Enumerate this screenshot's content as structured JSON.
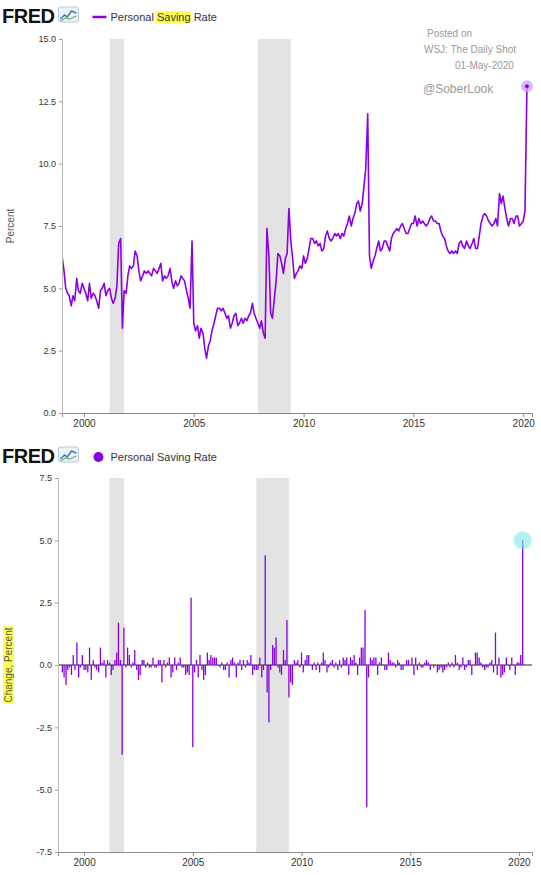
{
  "chart_data": [
    {
      "type": "line",
      "source_logo": "FRED",
      "y_label": "Percent",
      "annotations": [
        "Posted on",
        "WSJ: The Daily Shot",
        "01-May-2020",
        "@SoberLook"
      ],
      "legend": "top-left",
      "grid": false,
      "xlim": [
        1999,
        2020.4
      ],
      "xticks": [
        2000,
        2005,
        2010,
        2015,
        2020
      ],
      "ylim": [
        0,
        15
      ],
      "yticks": [
        {
          "value": 0,
          "label": "0.0"
        },
        2.5,
        {
          "value": 5,
          "label": "5.0"
        },
        7.5,
        {
          "value": 10,
          "label": "10.0"
        },
        12.5,
        {
          "value": 15,
          "label": "15.0"
        }
      ],
      "shaded_periods": [
        [
          2001.17,
          2001.83
        ],
        [
          2007.92,
          2009.42
        ]
      ],
      "x": [
        1999,
        1999.08,
        1999.17,
        1999.25,
        1999.33,
        1999.42,
        1999.5,
        1999.58,
        1999.67,
        1999.75,
        1999.83,
        1999.92,
        2000,
        2000.08,
        2000.17,
        2000.25,
        2000.33,
        2000.42,
        2000.5,
        2000.58,
        2000.67,
        2000.75,
        2000.83,
        2000.92,
        2001,
        2001.08,
        2001.17,
        2001.25,
        2001.33,
        2001.42,
        2001.5,
        2001.58,
        2001.67,
        2001.75,
        2001.83,
        2001.92,
        2002,
        2002.08,
        2002.17,
        2002.25,
        2002.33,
        2002.42,
        2002.5,
        2002.58,
        2002.67,
        2002.75,
        2002.83,
        2002.92,
        2003,
        2003.08,
        2003.17,
        2003.25,
        2003.33,
        2003.42,
        2003.5,
        2003.58,
        2003.67,
        2003.75,
        2003.83,
        2003.92,
        2004,
        2004.08,
        2004.17,
        2004.25,
        2004.33,
        2004.42,
        2004.5,
        2004.58,
        2004.67,
        2004.75,
        2004.83,
        2004.92,
        2005,
        2005.08,
        2005.17,
        2005.25,
        2005.33,
        2005.42,
        2005.5,
        2005.58,
        2005.67,
        2005.75,
        2005.83,
        2005.92,
        2006,
        2006.08,
        2006.17,
        2006.25,
        2006.33,
        2006.42,
        2006.5,
        2006.58,
        2006.67,
        2006.75,
        2006.83,
        2006.92,
        2007,
        2007.08,
        2007.17,
        2007.25,
        2007.33,
        2007.42,
        2007.5,
        2007.58,
        2007.67,
        2007.75,
        2007.83,
        2007.92,
        2008,
        2008.08,
        2008.17,
        2008.25,
        2008.33,
        2008.42,
        2008.5,
        2008.58,
        2008.67,
        2008.75,
        2008.83,
        2008.92,
        2009,
        2009.08,
        2009.17,
        2009.25,
        2009.33,
        2009.42,
        2009.5,
        2009.58,
        2009.67,
        2009.75,
        2009.83,
        2009.92,
        2010,
        2010.08,
        2010.17,
        2010.25,
        2010.33,
        2010.42,
        2010.5,
        2010.58,
        2010.67,
        2010.75,
        2010.83,
        2010.92,
        2011,
        2011.08,
        2011.17,
        2011.25,
        2011.33,
        2011.42,
        2011.5,
        2011.58,
        2011.67,
        2011.75,
        2011.83,
        2011.92,
        2012,
        2012.08,
        2012.17,
        2012.25,
        2012.33,
        2012.42,
        2012.5,
        2012.58,
        2012.67,
        2012.75,
        2012.83,
        2012.92,
        2013,
        2013.08,
        2013.17,
        2013.25,
        2013.33,
        2013.42,
        2013.5,
        2013.58,
        2013.67,
        2013.75,
        2013.83,
        2013.92,
        2014,
        2014.08,
        2014.17,
        2014.25,
        2014.33,
        2014.42,
        2014.5,
        2014.58,
        2014.67,
        2014.75,
        2014.83,
        2014.92,
        2015,
        2015.08,
        2015.17,
        2015.25,
        2015.33,
        2015.42,
        2015.5,
        2015.58,
        2015.67,
        2015.75,
        2015.83,
        2015.92,
        2016,
        2016.08,
        2016.17,
        2016.25,
        2016.33,
        2016.42,
        2016.5,
        2016.58,
        2016.67,
        2016.75,
        2016.83,
        2016.92,
        2017,
        2017.08,
        2017.17,
        2017.25,
        2017.33,
        2017.42,
        2017.5,
        2017.58,
        2017.67,
        2017.75,
        2017.83,
        2017.92,
        2018,
        2018.08,
        2018.17,
        2018.25,
        2018.33,
        2018.42,
        2018.5,
        2018.58,
        2018.67,
        2018.75,
        2018.83,
        2018.92,
        2019,
        2019.08,
        2019.17,
        2019.25,
        2019.33,
        2019.42,
        2019.5,
        2019.58,
        2019.67,
        2019.75,
        2019.83,
        2019.92,
        2020,
        2020.08,
        2020.17
      ],
      "series": [
        {
          "name": "Personal Saving Rate",
          "color": "#8a00e6",
          "values": [
            6.3,
            5.8,
            5.0,
            4.8,
            4.7,
            4.3,
            4.7,
            4.5,
            5.4,
            4.9,
            4.8,
            5.2,
            5.0,
            4.8,
            4.5,
            5.2,
            4.6,
            4.8,
            4.7,
            4.5,
            4.2,
            4.9,
            5.0,
            5.2,
            4.7,
            4.9,
            5.0,
            4.6,
            4.4,
            4.6,
            5.1,
            6.8,
            7.0,
            3.4,
            4.9,
            4.8,
            5.5,
            5.9,
            5.8,
            5.9,
            6.5,
            6.3,
            5.7,
            5.3,
            5.5,
            5.7,
            5.6,
            5.7,
            5.6,
            5.5,
            5.8,
            5.7,
            5.6,
            5.8,
            6.0,
            5.3,
            5.5,
            5.4,
            5.5,
            5.8,
            5.3,
            5.0,
            5.3,
            5.1,
            5.2,
            5.5,
            5.4,
            5.3,
            4.9,
            4.6,
            4.2,
            6.9,
            3.6,
            3.3,
            3.5,
            3.0,
            3.4,
            3.2,
            2.6,
            2.2,
            2.7,
            2.9,
            3.3,
            3.6,
            3.9,
            4.2,
            4.2,
            4.1,
            4.2,
            4.0,
            3.8,
            3.9,
            3.4,
            3.6,
            3.9,
            4.0,
            3.5,
            3.6,
            3.8,
            3.6,
            3.8,
            3.7,
            3.9,
            4.0,
            4.4,
            4.0,
            3.8,
            3.6,
            3.4,
            3.7,
            3.2,
            3.0,
            7.4,
            6.3,
            4.0,
            3.8,
            4.6,
            5.3,
            6.4,
            6.3,
            6.0,
            5.6,
            6.2,
            6.4,
            8.2,
            6.9,
            6.2,
            5.4,
            5.6,
            5.7,
            5.9,
            5.8,
            6.3,
            6.0,
            6.2,
            6.6,
            7.0,
            7.0,
            6.8,
            6.9,
            6.7,
            6.8,
            6.5,
            6.6,
            7.1,
            7.3,
            7.0,
            6.9,
            7.0,
            7.2,
            7.1,
            7.2,
            7.0,
            7.2,
            7.1,
            7.4,
            7.6,
            7.9,
            7.5,
            7.8,
            8.0,
            8.4,
            8.5,
            8.1,
            8.4,
            9.1,
            9.8,
            12.0,
            6.3,
            5.8,
            6.1,
            6.3,
            6.6,
            6.9,
            6.5,
            6.6,
            6.9,
            6.9,
            6.7,
            6.5,
            7.0,
            7.2,
            7.3,
            7.4,
            7.3,
            7.5,
            7.6,
            7.4,
            7.2,
            7.2,
            7.4,
            7.6,
            7.6,
            7.9,
            7.5,
            7.8,
            7.6,
            7.7,
            7.6,
            7.5,
            7.6,
            7.8,
            7.9,
            7.7,
            7.7,
            7.6,
            7.6,
            7.3,
            7.1,
            7.0,
            6.7,
            6.5,
            6.4,
            6.5,
            6.4,
            6.5,
            6.4,
            6.8,
            6.9,
            6.7,
            6.6,
            6.9,
            6.7,
            6.6,
            6.8,
            7.0,
            6.6,
            6.6,
            7.1,
            7.6,
            7.9,
            8.0,
            7.9,
            7.7,
            7.6,
            7.5,
            7.6,
            7.8,
            7.5,
            8.8,
            8.4,
            8.7,
            8.2,
            7.8,
            7.5,
            7.8,
            7.8,
            7.6,
            7.9,
            7.9,
            7.5,
            7.6,
            7.7,
            8.1,
            13.1
          ]
        }
      ]
    },
    {
      "type": "bar",
      "source_logo": "FRED",
      "y_label": "Change, Percent",
      "legend": "top-left",
      "grid": false,
      "xlim": [
        1998.8,
        2020.6
      ],
      "xticks": [
        2000,
        2005,
        2010,
        2015,
        2020
      ],
      "ylim": [
        -7.5,
        7.5
      ],
      "yticks": [
        -7.5,
        {
          "value": -5,
          "label": "-5.0"
        },
        -2.5,
        {
          "value": 0,
          "label": "0.0"
        },
        2.5,
        {
          "value": 5,
          "label": "5.0"
        },
        7.5
      ],
      "shaded_periods": [
        [
          2001.17,
          2001.83
        ],
        [
          2007.92,
          2009.42
        ]
      ],
      "x": [
        1999,
        1999.08,
        1999.17,
        1999.25,
        1999.33,
        1999.42,
        1999.5,
        1999.58,
        1999.67,
        1999.75,
        1999.83,
        1999.92,
        2000,
        2000.08,
        2000.17,
        2000.25,
        2000.33,
        2000.42,
        2000.5,
        2000.58,
        2000.67,
        2000.75,
        2000.83,
        2000.92,
        2001,
        2001.08,
        2001.17,
        2001.25,
        2001.33,
        2001.42,
        2001.5,
        2001.58,
        2001.67,
        2001.75,
        2001.83,
        2001.92,
        2002,
        2002.08,
        2002.17,
        2002.25,
        2002.33,
        2002.42,
        2002.5,
        2002.58,
        2002.67,
        2002.75,
        2002.83,
        2002.92,
        2003,
        2003.08,
        2003.17,
        2003.25,
        2003.33,
        2003.42,
        2003.5,
        2003.58,
        2003.67,
        2003.75,
        2003.83,
        2003.92,
        2004,
        2004.08,
        2004.17,
        2004.25,
        2004.33,
        2004.42,
        2004.5,
        2004.58,
        2004.67,
        2004.75,
        2004.83,
        2004.92,
        2005,
        2005.08,
        2005.17,
        2005.25,
        2005.33,
        2005.42,
        2005.5,
        2005.58,
        2005.67,
        2005.75,
        2005.83,
        2005.92,
        2006,
        2006.08,
        2006.17,
        2006.25,
        2006.33,
        2006.42,
        2006.5,
        2006.58,
        2006.67,
        2006.75,
        2006.83,
        2006.92,
        2007,
        2007.08,
        2007.17,
        2007.25,
        2007.33,
        2007.42,
        2007.5,
        2007.58,
        2007.67,
        2007.75,
        2007.83,
        2007.92,
        2008,
        2008.08,
        2008.17,
        2008.25,
        2008.33,
        2008.42,
        2008.5,
        2008.58,
        2008.67,
        2008.75,
        2008.83,
        2008.92,
        2009,
        2009.08,
        2009.17,
        2009.25,
        2009.33,
        2009.42,
        2009.5,
        2009.58,
        2009.67,
        2009.75,
        2009.83,
        2009.92,
        2010,
        2010.08,
        2010.17,
        2010.25,
        2010.33,
        2010.42,
        2010.5,
        2010.58,
        2010.67,
        2010.75,
        2010.83,
        2010.92,
        2011,
        2011.08,
        2011.17,
        2011.25,
        2011.33,
        2011.42,
        2011.5,
        2011.58,
        2011.67,
        2011.75,
        2011.83,
        2011.92,
        2012,
        2012.08,
        2012.17,
        2012.25,
        2012.33,
        2012.42,
        2012.5,
        2012.58,
        2012.67,
        2012.75,
        2012.83,
        2012.92,
        2013,
        2013.08,
        2013.17,
        2013.25,
        2013.33,
        2013.42,
        2013.5,
        2013.58,
        2013.67,
        2013.75,
        2013.83,
        2013.92,
        2014,
        2014.08,
        2014.17,
        2014.25,
        2014.33,
        2014.42,
        2014.5,
        2014.58,
        2014.67,
        2014.75,
        2014.83,
        2014.92,
        2015,
        2015.08,
        2015.17,
        2015.25,
        2015.33,
        2015.42,
        2015.5,
        2015.58,
        2015.67,
        2015.75,
        2015.83,
        2015.92,
        2016,
        2016.08,
        2016.17,
        2016.25,
        2016.33,
        2016.42,
        2016.5,
        2016.58,
        2016.67,
        2016.75,
        2016.83,
        2016.92,
        2017,
        2017.08,
        2017.17,
        2017.25,
        2017.33,
        2017.42,
        2017.5,
        2017.58,
        2017.67,
        2017.75,
        2017.83,
        2017.92,
        2018,
        2018.08,
        2018.17,
        2018.25,
        2018.33,
        2018.42,
        2018.5,
        2018.58,
        2018.67,
        2018.75,
        2018.83,
        2018.92,
        2019,
        2019.08,
        2019.17,
        2019.25,
        2019.33,
        2019.42,
        2019.5,
        2019.58,
        2019.67,
        2019.75,
        2019.83,
        2019.92,
        2020,
        2020.08,
        2020.17
      ],
      "series": [
        {
          "name": "Personal Saving Rate",
          "color": "#8a00e6",
          "values": [
            -0.3,
            -0.5,
            -0.8,
            -0.2,
            -0.1,
            -0.4,
            0.4,
            -0.2,
            0.9,
            -0.5,
            -0.1,
            0.4,
            -0.2,
            -0.2,
            -0.3,
            0.7,
            -0.6,
            0.2,
            -0.1,
            -0.2,
            -0.3,
            0.7,
            0.1,
            0.2,
            -0.5,
            0.2,
            0.1,
            -0.4,
            -0.2,
            0.2,
            0.5,
            1.7,
            0.2,
            -3.6,
            1.5,
            -0.1,
            0.7,
            0.4,
            -0.1,
            0.1,
            0.6,
            -0.2,
            -0.6,
            -0.4,
            0.2,
            0.2,
            -0.1,
            0.1,
            -0.1,
            -0.1,
            0.3,
            -0.1,
            -0.1,
            0.2,
            0.2,
            -0.7,
            0.2,
            -0.1,
            0.1,
            0.3,
            -0.5,
            -0.3,
            0.3,
            -0.2,
            0.1,
            0.3,
            -0.1,
            -0.1,
            -0.4,
            -0.3,
            -0.4,
            2.7,
            -3.3,
            -0.3,
            0.2,
            -0.5,
            0.4,
            -0.2,
            -0.6,
            -0.4,
            0.5,
            0.2,
            0.4,
            0.3,
            0.3,
            0.3,
            0.0,
            -0.1,
            0.1,
            -0.2,
            -0.2,
            0.1,
            -0.5,
            0.2,
            0.3,
            0.1,
            -0.5,
            0.1,
            0.2,
            -0.2,
            0.2,
            -0.1,
            0.2,
            0.1,
            0.4,
            -0.4,
            -0.2,
            -0.2,
            -0.2,
            0.3,
            -0.5,
            -0.2,
            4.4,
            -1.1,
            -2.3,
            -0.2,
            0.8,
            0.7,
            1.1,
            -0.1,
            -0.3,
            -0.4,
            0.6,
            0.2,
            1.8,
            -1.3,
            -0.7,
            -0.8,
            0.2,
            0.1,
            0.2,
            -0.1,
            0.5,
            -0.3,
            0.2,
            0.4,
            0.4,
            0.0,
            -0.2,
            0.1,
            -0.2,
            0.1,
            -0.3,
            0.1,
            0.5,
            0.2,
            -0.3,
            -0.1,
            0.1,
            0.2,
            -0.1,
            0.1,
            -0.2,
            0.2,
            -0.1,
            0.3,
            0.2,
            0.3,
            -0.4,
            0.3,
            0.2,
            0.4,
            0.1,
            -0.4,
            0.3,
            0.7,
            0.7,
            2.2,
            -5.7,
            -0.5,
            0.3,
            0.2,
            0.3,
            0.3,
            -0.4,
            0.1,
            0.3,
            0.0,
            -0.2,
            -0.2,
            0.5,
            0.2,
            0.1,
            0.1,
            -0.1,
            0.2,
            0.1,
            -0.2,
            -0.2,
            0.0,
            0.2,
            0.2,
            0.0,
            0.3,
            -0.4,
            0.3,
            -0.2,
            0.1,
            -0.1,
            -0.1,
            0.1,
            0.2,
            0.1,
            -0.2,
            0.0,
            -0.1,
            0.0,
            -0.3,
            -0.2,
            -0.1,
            -0.3,
            -0.2,
            -0.1,
            0.1,
            -0.1,
            0.1,
            -0.1,
            0.4,
            0.1,
            -0.2,
            -0.1,
            0.3,
            -0.2,
            -0.1,
            0.2,
            0.2,
            -0.4,
            0.0,
            0.5,
            0.5,
            0.3,
            0.1,
            -0.1,
            -0.2,
            -0.1,
            -0.1,
            0.1,
            0.2,
            -0.3,
            1.3,
            -0.4,
            0.3,
            -0.5,
            -0.4,
            -0.3,
            0.3,
            0.0,
            -0.2,
            0.3,
            0.0,
            -0.4,
            0.1,
            0.1,
            0.4,
            5.0
          ]
        }
      ]
    }
  ]
}
